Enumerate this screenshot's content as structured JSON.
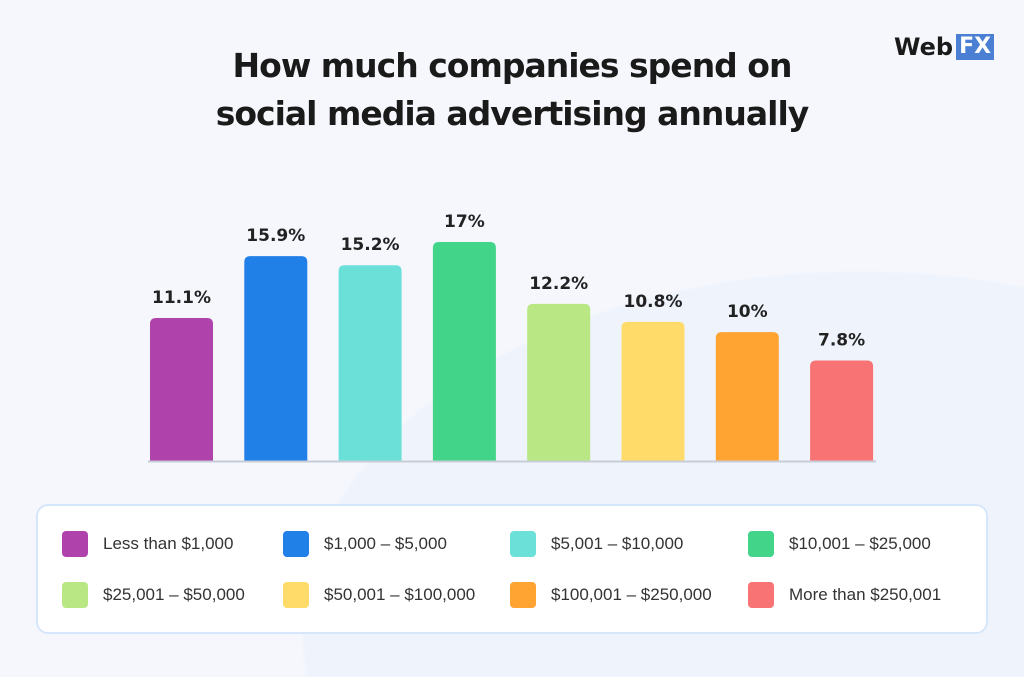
{
  "title_lines": [
    "How much companies spend on",
    "social media advertising annually"
  ],
  "logo": {
    "web": "Web",
    "fx": "FX"
  },
  "chart_data": {
    "type": "bar",
    "title": "How much companies spend on social media advertising annually",
    "categories": [
      "Less than $1,000",
      "$1,000 – $5,000",
      "$5,001 – $10,000",
      "$10,001 – $25,000",
      "$25,001 – $50,000",
      "$50,001 – $100,000",
      "$100,001 – $250,000",
      "More than $250,001"
    ],
    "values": [
      11.1,
      15.9,
      15.2,
      17,
      12.2,
      10.8,
      10,
      7.8
    ],
    "labels": [
      "11.1%",
      "15.9%",
      "15.2%",
      "17%",
      "12.2%",
      "10.8%",
      "10%",
      "7.8%"
    ],
    "colors": [
      "#b042ab",
      "#217fe8",
      "#6be0d8",
      "#42d58a",
      "#b8e783",
      "#ffdc6a",
      "#ffa333",
      "#f87373"
    ],
    "legend_position": "bottom",
    "grid": false,
    "ylim": [
      0,
      17
    ]
  }
}
